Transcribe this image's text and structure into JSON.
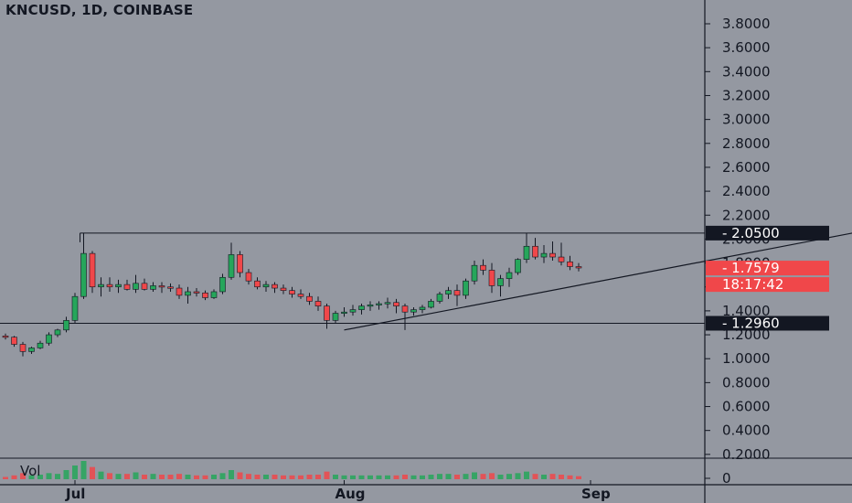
{
  "header": {
    "title": "KNCUSD, 1D, COINBASE"
  },
  "volume": {
    "label": "Vol"
  },
  "colors": {
    "background": "#9498a1",
    "up": "#26a65b",
    "down": "#f0474a",
    "line": "#131722",
    "axis_text": "#131722",
    "tag_dark": "#131722",
    "tag_red": "#f0474a"
  },
  "chart_data": {
    "type": "candlestick",
    "symbol": "KNCUSD",
    "interval": "1D",
    "exchange": "COINBASE",
    "ylim": [
      0,
      3.95
    ],
    "y_ticks": [
      "3.8000",
      "3.6000",
      "3.4000",
      "3.2000",
      "3.0000",
      "2.8000",
      "2.6000",
      "2.4000",
      "2.2000",
      "2.0000",
      "1.8000",
      "1.6000",
      "1.4000",
      "1.2000",
      "1.0000",
      "0.8000",
      "0.6000",
      "0.4000",
      "0.2000",
      "0"
    ],
    "y_tick_values": [
      3.8,
      3.6,
      3.4,
      3.2,
      3.0,
      2.8,
      2.6,
      2.4,
      2.2,
      2.0,
      1.8,
      1.6,
      1.4,
      1.2,
      1.0,
      0.8,
      0.6,
      0.4,
      0.2,
      0
    ],
    "x_ticks": [
      "Jul",
      "Aug",
      "Sep"
    ],
    "x_tick_days": [
      0,
      31,
      62
    ],
    "first_day": -12,
    "candles": [
      [
        1.27,
        1.29,
        1.24,
        1.25
      ],
      [
        1.25,
        1.27,
        1.22,
        1.26
      ],
      [
        1.26,
        1.27,
        1.2,
        1.22
      ],
      [
        1.22,
        1.23,
        1.17,
        1.19
      ],
      [
        1.19,
        1.21,
        1.16,
        1.18
      ],
      [
        1.18,
        1.19,
        1.1,
        1.12
      ],
      [
        1.12,
        1.14,
        1.02,
        1.06
      ],
      [
        1.06,
        1.1,
        1.04,
        1.09
      ],
      [
        1.09,
        1.15,
        1.08,
        1.13
      ],
      [
        1.13,
        1.22,
        1.11,
        1.2
      ],
      [
        1.2,
        1.25,
        1.18,
        1.24
      ],
      [
        1.24,
        1.35,
        1.22,
        1.32
      ],
      [
        1.32,
        1.55,
        1.3,
        1.52
      ],
      [
        1.52,
        2.05,
        1.5,
        1.88
      ],
      [
        1.88,
        1.9,
        1.55,
        1.6
      ],
      [
        1.6,
        1.68,
        1.52,
        1.62
      ],
      [
        1.62,
        1.68,
        1.56,
        1.6
      ],
      [
        1.6,
        1.66,
        1.55,
        1.62
      ],
      [
        1.62,
        1.66,
        1.57,
        1.58
      ],
      [
        1.58,
        1.7,
        1.55,
        1.63
      ],
      [
        1.63,
        1.67,
        1.57,
        1.58
      ],
      [
        1.58,
        1.64,
        1.56,
        1.61
      ],
      [
        1.61,
        1.64,
        1.55,
        1.6
      ],
      [
        1.6,
        1.63,
        1.56,
        1.59
      ],
      [
        1.59,
        1.62,
        1.5,
        1.53
      ],
      [
        1.53,
        1.6,
        1.46,
        1.56
      ],
      [
        1.56,
        1.59,
        1.52,
        1.55
      ],
      [
        1.55,
        1.57,
        1.49,
        1.51
      ],
      [
        1.51,
        1.58,
        1.5,
        1.56
      ],
      [
        1.56,
        1.71,
        1.54,
        1.68
      ],
      [
        1.68,
        1.97,
        1.66,
        1.87
      ],
      [
        1.87,
        1.9,
        1.68,
        1.72
      ],
      [
        1.72,
        1.75,
        1.62,
        1.65
      ],
      [
        1.65,
        1.68,
        1.58,
        1.6
      ],
      [
        1.6,
        1.65,
        1.56,
        1.62
      ],
      [
        1.62,
        1.64,
        1.55,
        1.59
      ],
      [
        1.59,
        1.62,
        1.54,
        1.57
      ],
      [
        1.57,
        1.6,
        1.51,
        1.54
      ],
      [
        1.54,
        1.58,
        1.5,
        1.52
      ],
      [
        1.52,
        1.55,
        1.45,
        1.48
      ],
      [
        1.48,
        1.52,
        1.4,
        1.44
      ],
      [
        1.44,
        1.46,
        1.25,
        1.32
      ],
      [
        1.32,
        1.4,
        1.3,
        1.38
      ],
      [
        1.38,
        1.43,
        1.35,
        1.39
      ],
      [
        1.39,
        1.45,
        1.36,
        1.41
      ],
      [
        1.41,
        1.46,
        1.37,
        1.44
      ],
      [
        1.44,
        1.48,
        1.4,
        1.45
      ],
      [
        1.45,
        1.48,
        1.41,
        1.46
      ],
      [
        1.46,
        1.51,
        1.42,
        1.47
      ],
      [
        1.47,
        1.5,
        1.38,
        1.44
      ],
      [
        1.44,
        1.46,
        1.24,
        1.39
      ],
      [
        1.39,
        1.43,
        1.36,
        1.41
      ],
      [
        1.41,
        1.45,
        1.38,
        1.43
      ],
      [
        1.43,
        1.5,
        1.42,
        1.48
      ],
      [
        1.48,
        1.56,
        1.46,
        1.54
      ],
      [
        1.54,
        1.6,
        1.5,
        1.57
      ],
      [
        1.57,
        1.62,
        1.44,
        1.53
      ],
      [
        1.53,
        1.67,
        1.5,
        1.65
      ],
      [
        1.65,
        1.82,
        1.62,
        1.78
      ],
      [
        1.78,
        1.83,
        1.7,
        1.74
      ],
      [
        1.74,
        1.8,
        1.55,
        1.61
      ],
      [
        1.61,
        1.7,
        1.52,
        1.67
      ],
      [
        1.67,
        1.76,
        1.6,
        1.72
      ],
      [
        1.72,
        1.84,
        1.7,
        1.83
      ],
      [
        1.83,
        2.05,
        1.8,
        1.94
      ],
      [
        1.94,
        2.01,
        1.83,
        1.85
      ],
      [
        1.85,
        1.95,
        1.8,
        1.88
      ],
      [
        1.88,
        1.98,
        1.82,
        1.85
      ],
      [
        1.85,
        1.97,
        1.78,
        1.81
      ],
      [
        1.81,
        1.86,
        1.74,
        1.77
      ],
      [
        1.77,
        1.8,
        1.73,
        1.76
      ]
    ],
    "volume": [
      0.04,
      0.03,
      0.03,
      0.04,
      0.03,
      0.05,
      0.08,
      0.05,
      0.06,
      0.08,
      0.07,
      0.12,
      0.18,
      0.24,
      0.16,
      0.1,
      0.08,
      0.07,
      0.07,
      0.09,
      0.06,
      0.07,
      0.06,
      0.06,
      0.07,
      0.06,
      0.05,
      0.05,
      0.06,
      0.08,
      0.12,
      0.09,
      0.07,
      0.06,
      0.06,
      0.06,
      0.05,
      0.05,
      0.05,
      0.06,
      0.06,
      0.1,
      0.06,
      0.05,
      0.05,
      0.05,
      0.05,
      0.05,
      0.05,
      0.05,
      0.06,
      0.05,
      0.05,
      0.06,
      0.07,
      0.07,
      0.06,
      0.07,
      0.09,
      0.07,
      0.08,
      0.06,
      0.07,
      0.08,
      0.1,
      0.07,
      0.06,
      0.07,
      0.06,
      0.05,
      0.04
    ],
    "horizontal_lines": [
      2.05,
      1.296
    ],
    "trendline": {
      "from": [
        31,
        1.24
      ],
      "to": [
        70,
        1.78
      ],
      "extend_to_day": 109
    },
    "price_tags": [
      {
        "label": "2.0500",
        "value": 2.05,
        "style": "dark"
      },
      {
        "label": "1.7579",
        "value": 1.7579,
        "style": "red"
      },
      {
        "label": "18:17:42",
        "value": 1.62,
        "style": "red"
      },
      {
        "label": "1.2960",
        "value": 1.296,
        "style": "dark"
      }
    ]
  }
}
